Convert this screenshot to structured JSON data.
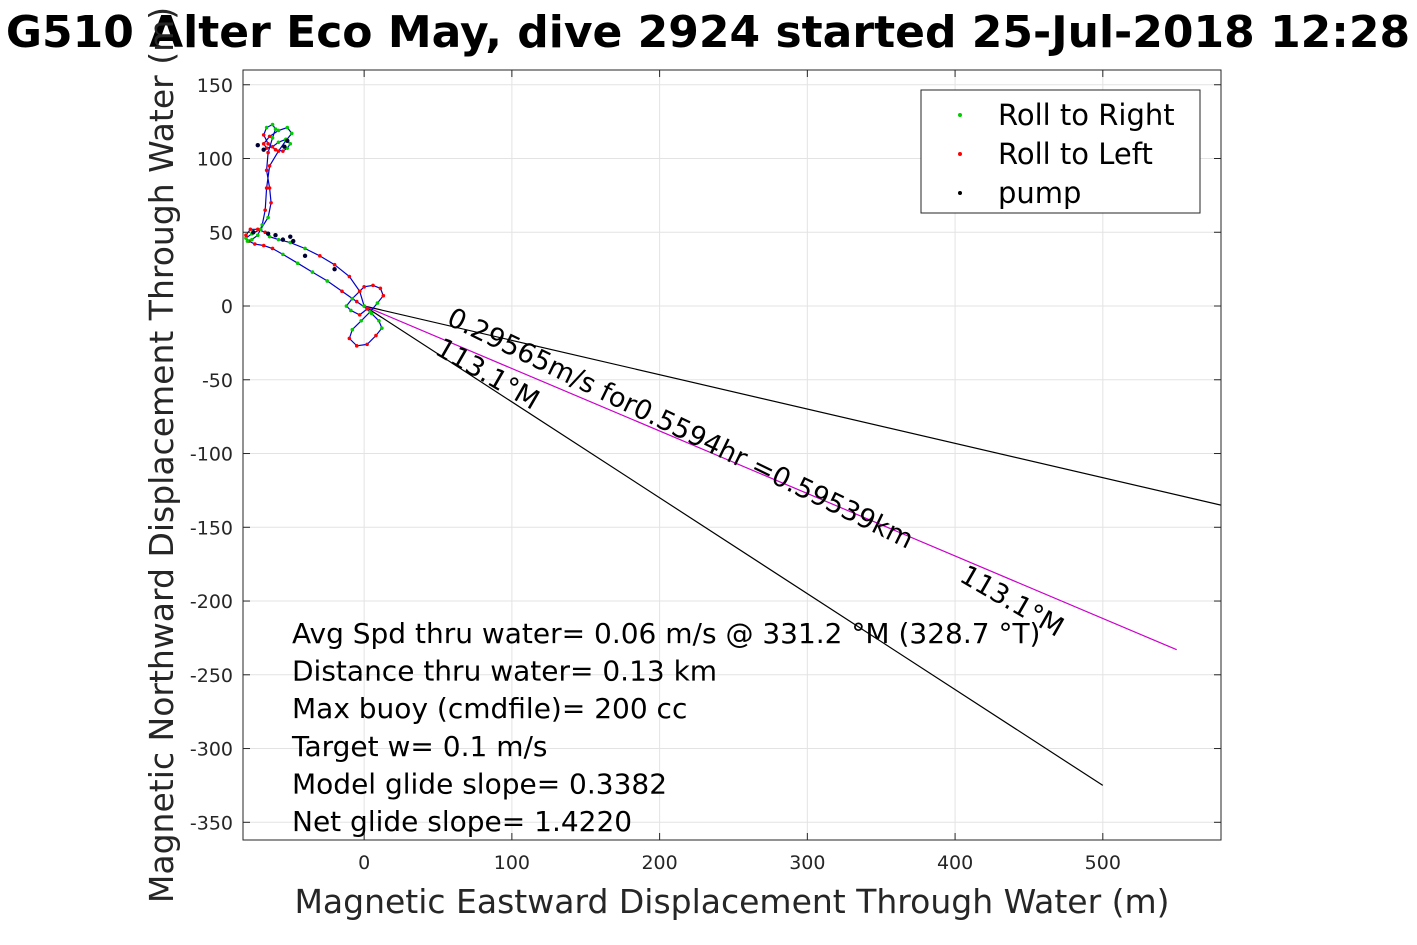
{
  "chart_data": {
    "type": "scatter",
    "title": "G510 Alter Eco May, dive 2924 started 25-Jul-2018 12:28",
    "xlabel": "Magnetic Eastward Displacement Through Water (m)",
    "ylabel": "Magnetic Northward Displacement Through Water (m)",
    "xlim": [
      -82,
      580
    ],
    "ylim": [
      -362,
      160
    ],
    "xticks": [
      0,
      100,
      200,
      300,
      400,
      500
    ],
    "yticks": [
      150,
      100,
      50,
      0,
      -50,
      -100,
      -150,
      -200,
      -250,
      -300,
      -350
    ],
    "grid": true,
    "legend": {
      "placement": "top-right",
      "entries": [
        {
          "label": "Roll to Right",
          "color": "#00cc00"
        },
        {
          "label": "Roll to Left",
          "color": "#ff0000"
        },
        {
          "label": "pump",
          "color": "#000000"
        }
      ]
    },
    "track": {
      "name": "glider track",
      "color": "#0000cc",
      "x": [
        0,
        5,
        10,
        12,
        8,
        2,
        -5,
        -10,
        -8,
        -2,
        4,
        9,
        13,
        11,
        6,
        0,
        -3,
        -8,
        -12,
        -9,
        -3,
        2,
        -5,
        -15,
        -25,
        -35,
        -45,
        -55,
        -62,
        -68,
        -74,
        -78,
        -80,
        -76,
        -70,
        -65,
        -63,
        -64,
        -66,
        -65,
        -62,
        -60,
        -62,
        -66,
        -68,
        -65,
        -60,
        -55,
        -52,
        -50,
        -53,
        -58,
        -62,
        -66,
        -68,
        -64,
        -58,
        -52,
        -49,
        -53,
        -58,
        -64,
        -66,
        -67,
        -69,
        -72,
        -76,
        -79,
        -80,
        -77,
        -72,
        -67,
        -64,
        -58,
        -50,
        -40,
        -30,
        -20,
        -10,
        -3,
        0
      ],
      "y": [
        0,
        -5,
        -10,
        -15,
        -20,
        -26,
        -27,
        -22,
        -16,
        -10,
        -4,
        2,
        7,
        12,
        14,
        13,
        10,
        5,
        0,
        -3,
        -6,
        -2,
        3,
        10,
        17,
        23,
        29,
        35,
        39,
        41,
        42,
        44,
        46,
        49,
        52,
        60,
        70,
        80,
        92,
        104,
        114,
        120,
        123,
        121,
        116,
        110,
        106,
        105,
        107,
        110,
        113,
        111,
        108,
        107,
        110,
        115,
        119,
        121,
        117,
        112,
        105,
        95,
        80,
        65,
        55,
        48,
        45,
        44,
        48,
        52,
        52,
        50,
        47,
        45,
        43,
        39,
        34,
        28,
        20,
        10,
        0
      ]
    },
    "pump_points": {
      "name": "pump",
      "x": [
        -40,
        -20,
        -55,
        -48,
        -68,
        -72,
        -75,
        -65,
        -60,
        -50,
        -52,
        -54
      ],
      "y": [
        34,
        25,
        45,
        44,
        106,
        109,
        50,
        49,
        48,
        47,
        112,
        108
      ]
    },
    "reference_lines": [
      {
        "name": "current-direction-line",
        "x": [
          0,
          580
        ],
        "y": [
          0,
          -135
        ],
        "color": "#000000"
      },
      {
        "name": "heading-line",
        "x": [
          0,
          500
        ],
        "y": [
          0,
          -325
        ],
        "color": "#000000"
      },
      {
        "name": "drift-line",
        "x": [
          0,
          550
        ],
        "y": [
          0,
          -233
        ],
        "color": "#cc00cc"
      }
    ],
    "annotations": [
      {
        "text": "0.29565m/s for0.5594hr =0.59539km",
        "x": 55,
        "y": -12,
        "rotate": 26
      },
      {
        "text": "113.1°M",
        "x": 47,
        "y": -32,
        "rotate": 30
      },
      {
        "text": "113.1°M",
        "x": 402,
        "y": -186,
        "rotate": 30
      }
    ],
    "stats": [
      "Avg Spd thru water=  0.06 m/s @ 331.2 °M (328.7 °T)",
      "Distance thru water=  0.13 km",
      "Max buoy (cmdfile)= 200 cc",
      "Target w= 0.1 m/s",
      "Model glide slope= 0.3382",
      "Net glide slope= 1.4220"
    ]
  }
}
